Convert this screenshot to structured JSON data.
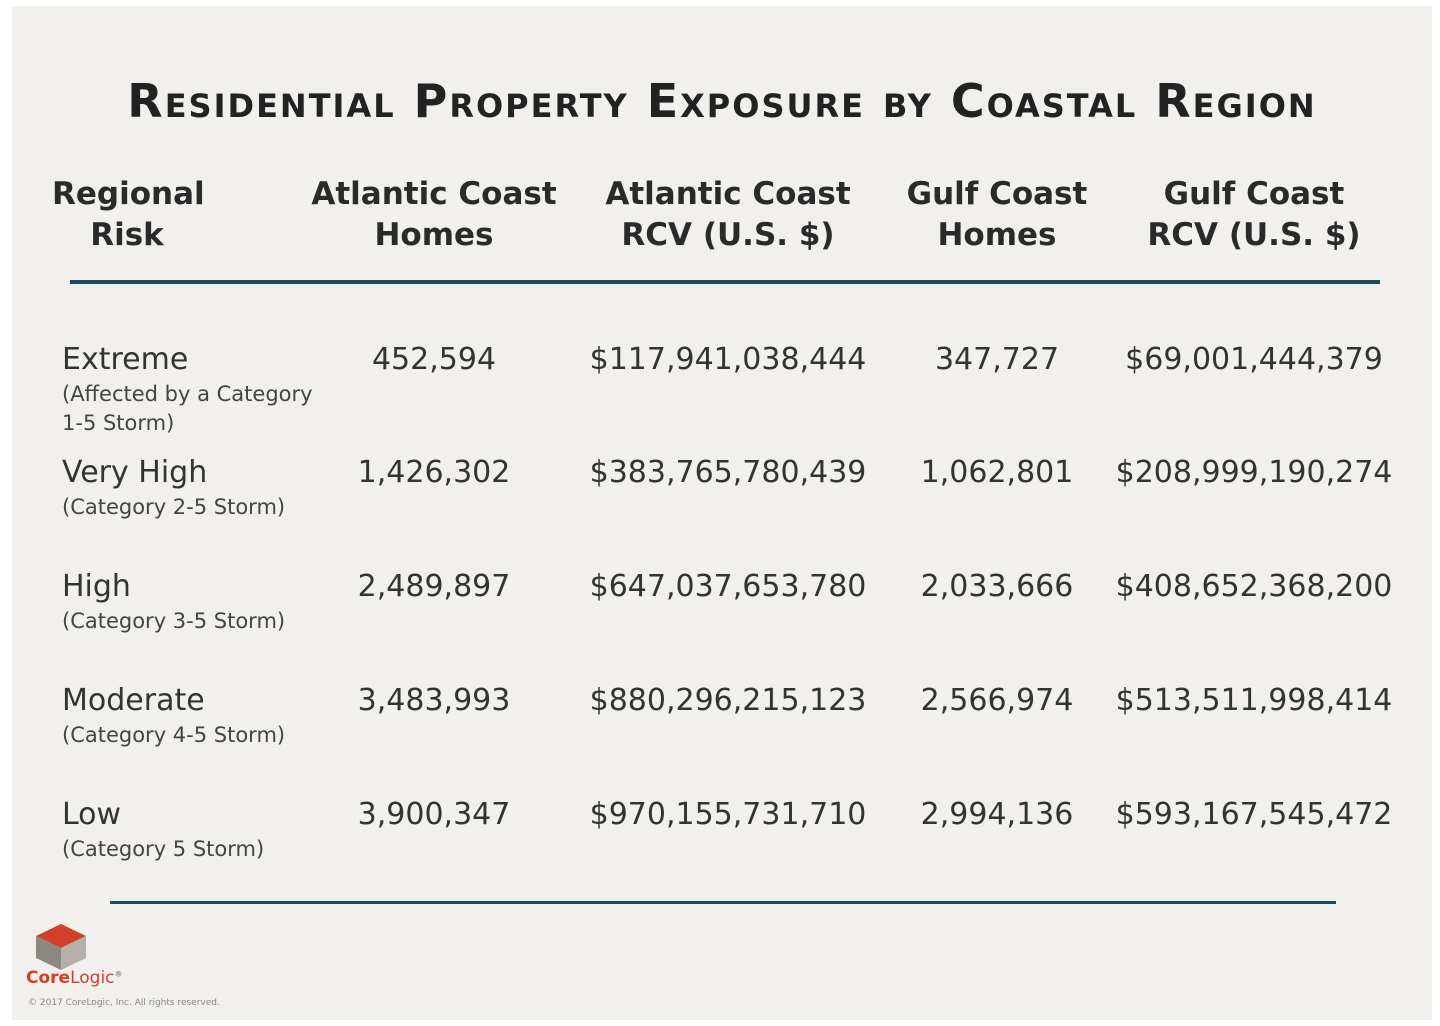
{
  "chart_data": {
    "type": "table",
    "title": "Residential Property Exposure by Coastal Region",
    "columns": [
      {
        "line1": "Regional",
        "line2": "Risk"
      },
      {
        "line1": "Atlantic Coast",
        "line2": "Homes"
      },
      {
        "line1": "Atlantic Coast",
        "line2": "RCV (U.S. $)"
      },
      {
        "line1": "Gulf Coast",
        "line2": "Homes"
      },
      {
        "line1": "Gulf Coast",
        "line2": "RCV (U.S. $)"
      }
    ],
    "rows": [
      {
        "risk": "Extreme",
        "description": "(Affected by a Category 1-5 Storm)",
        "atlantic_homes": "452,594",
        "atlantic_rcv": "$117,941,038,444",
        "gulf_homes": "347,727",
        "gulf_rcv": "$69,001,444,379"
      },
      {
        "risk": "Very High",
        "description": "(Category 2-5 Storm)",
        "atlantic_homes": "1,426,302",
        "atlantic_rcv": "$383,765,780,439",
        "gulf_homes": "1,062,801",
        "gulf_rcv": "$208,999,190,274"
      },
      {
        "risk": "High",
        "description": "(Category 3-5 Storm)",
        "atlantic_homes": "2,489,897",
        "atlantic_rcv": "$647,037,653,780",
        "gulf_homes": "2,033,666",
        "gulf_rcv": "$408,652,368,200"
      },
      {
        "risk": "Moderate",
        "description": "(Category 4-5 Storm)",
        "atlantic_homes": "3,483,993",
        "atlantic_rcv": "$880,296,215,123",
        "gulf_homes": "2,566,974",
        "gulf_rcv": "$513,511,998,414"
      },
      {
        "risk": "Low",
        "description": "(Category 5 Storm)",
        "atlantic_homes": "3,900,347",
        "atlantic_rcv": "$970,155,731,710",
        "gulf_homes": "2,994,136",
        "gulf_rcv": "$593,167,545,472"
      }
    ]
  },
  "branding": {
    "logo_core": "Core",
    "logo_logic": "Logic",
    "logo_mark": "®",
    "copyright": "© 2017 CoreLogic, Inc. All rights reserved."
  },
  "colors": {
    "background": "#f2f0ec",
    "rule": "#1e4a5e",
    "text": "#333333",
    "brand_red": "#d0402a"
  }
}
